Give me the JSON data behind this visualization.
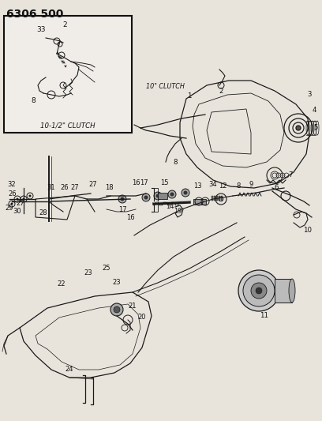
{
  "title": "6306 500",
  "bg_color": "#c8c4bc",
  "inset_bg": "#f0ede8",
  "main_bg": "#e8e4dc",
  "title_fontsize": 10,
  "title_fontweight": "bold",
  "inset_label": "10-1/2\" CLUTCH",
  "inset_label2": "10\" CLUTCH",
  "line_color": "#1a1a1a",
  "text_color": "#111111",
  "lw": 0.9
}
